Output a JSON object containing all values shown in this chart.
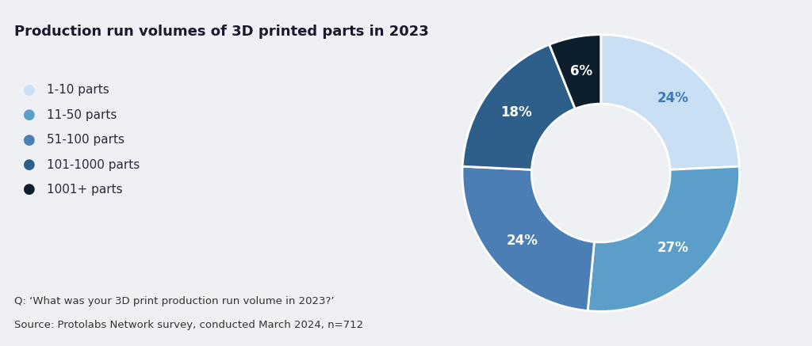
{
  "title": "Production run volumes of 3D printed parts in 2023",
  "background_color": "#eef0f3",
  "segments": [
    {
      "label": "1-10 parts",
      "value": 24,
      "color": "#c9e0f4",
      "pct_label": "24%",
      "text_color": "#3a7ab0"
    },
    {
      "label": "11-50 parts",
      "value": 27,
      "color": "#5b9ec9",
      "pct_label": "27%",
      "text_color": "#ffffff"
    },
    {
      "label": "51-100 parts",
      "value": 24,
      "color": "#4a7eb5",
      "pct_label": "24%",
      "text_color": "#ffffff"
    },
    {
      "label": "101-1000 parts",
      "value": 18,
      "color": "#2e5f8a",
      "pct_label": "18%",
      "text_color": "#ffffff"
    },
    {
      "label": "1001+ parts",
      "value": 6,
      "color": "#0d1f2d",
      "pct_label": "6%",
      "text_color": "#ffffff"
    }
  ],
  "footnote_line1": "Q: ‘What was your 3D print production run volume in 2023?’",
  "footnote_line2": "Source: Protolabs Network survey, conducted March 2024, n=712",
  "title_fontsize": 13,
  "legend_fontsize": 11,
  "footnote_fontsize": 9.5,
  "pct_fontsize": 12
}
